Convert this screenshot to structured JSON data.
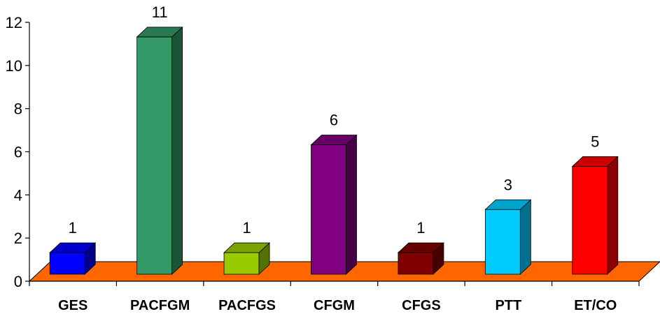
{
  "chart_data": {
    "type": "bar",
    "categories": [
      "GES",
      "PACFGM",
      "PACFGS",
      "CFGM",
      "CFGS",
      "PTT",
      "ET/CO"
    ],
    "values": [
      1,
      11,
      1,
      6,
      1,
      3,
      5
    ],
    "data_labels": [
      "1",
      "11",
      "1",
      "6",
      "1",
      "3",
      "5"
    ],
    "colors": [
      "#0000ff",
      "#339966",
      "#99cc00",
      "#800080",
      "#800000",
      "#00ccff",
      "#ff0000"
    ],
    "floor_color": "#ff6600",
    "ylim": [
      0,
      12
    ],
    "yticks": [
      0,
      2,
      4,
      6,
      8,
      10,
      12
    ],
    "ytick_labels": [
      "0",
      "2",
      "4",
      "6",
      "8",
      "10",
      "12"
    ],
    "grid": false,
    "legend": "none",
    "style": "3d-column"
  }
}
